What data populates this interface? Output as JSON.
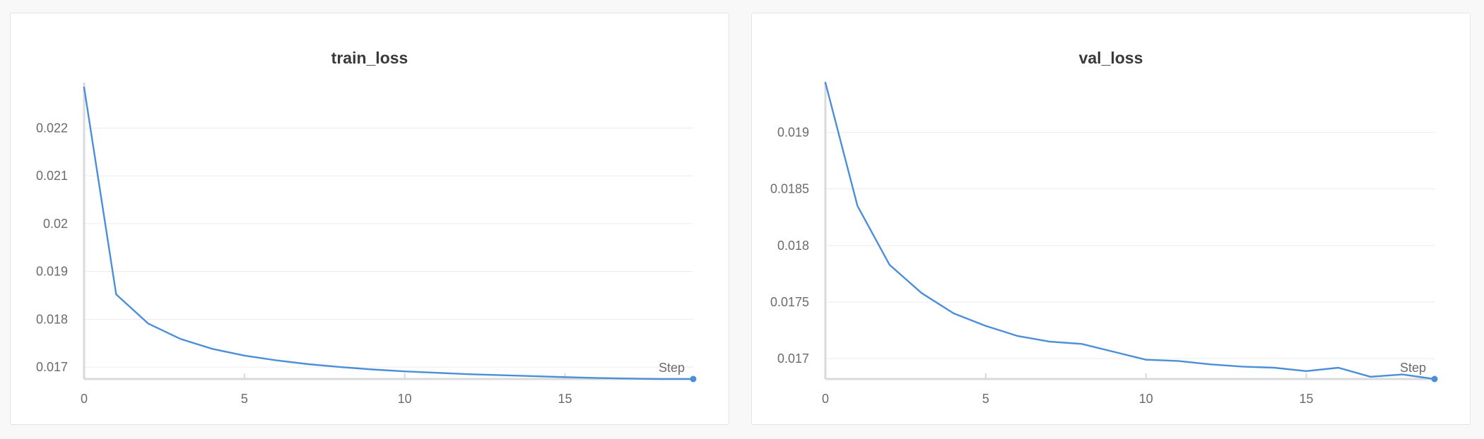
{
  "colors": {
    "series": "#4a8fd8",
    "point": "#4a8fd8"
  },
  "chart_data": [
    {
      "type": "line",
      "title": "train_loss",
      "xlabel": "Step",
      "ylabel": "",
      "xlim": [
        0,
        19
      ],
      "ylim": [
        0.01675,
        0.02295
      ],
      "x_ticks": [
        0,
        5,
        10,
        15
      ],
      "x_tick_labels": [
        "0",
        "5",
        "10",
        "15"
      ],
      "y_ticks": [
        0.017,
        0.018,
        0.019,
        0.02,
        0.021,
        0.022
      ],
      "y_tick_labels": [
        "0.017",
        "0.018",
        "0.019",
        "0.02",
        "0.021",
        "0.022"
      ],
      "grid": true,
      "legend": "none",
      "x": [
        0,
        1,
        2,
        3,
        4,
        5,
        6,
        7,
        8,
        9,
        10,
        11,
        12,
        13,
        14,
        15,
        16,
        17,
        18,
        19
      ],
      "series": [
        {
          "values": [
            0.02285,
            0.01852,
            0.01791,
            0.01759,
            0.01738,
            0.01724,
            0.01714,
            0.01706,
            0.017,
            0.01695,
            0.01691,
            0.01688,
            0.01685,
            0.01683,
            0.01681,
            0.01679,
            0.01677,
            0.01676,
            0.01675,
            0.01675
          ]
        }
      ]
    },
    {
      "type": "line",
      "title": "val_loss",
      "xlabel": "Step",
      "ylabel": "",
      "xlim": [
        0,
        19
      ],
      "ylim": [
        0.01682,
        0.01944
      ],
      "x_ticks": [
        0,
        5,
        10,
        15
      ],
      "x_tick_labels": [
        "0",
        "5",
        "10",
        "15"
      ],
      "y_ticks": [
        0.017,
        0.0175,
        0.018,
        0.0185,
        0.019
      ],
      "y_tick_labels": [
        "0.017",
        "0.0175",
        "0.018",
        "0.0185",
        "0.019"
      ],
      "grid": true,
      "legend": "none",
      "x": [
        0,
        1,
        2,
        3,
        4,
        5,
        6,
        7,
        8,
        9,
        10,
        11,
        12,
        13,
        14,
        15,
        16,
        17,
        18,
        19
      ],
      "series": [
        {
          "values": [
            0.01944,
            0.01835,
            0.01783,
            0.01758,
            0.0174,
            0.01729,
            0.0172,
            0.01715,
            0.01713,
            0.01706,
            0.01699,
            0.01698,
            0.01695,
            0.01693,
            0.01692,
            0.01689,
            0.01692,
            0.01684,
            0.01686,
            0.01682
          ]
        }
      ]
    }
  ]
}
